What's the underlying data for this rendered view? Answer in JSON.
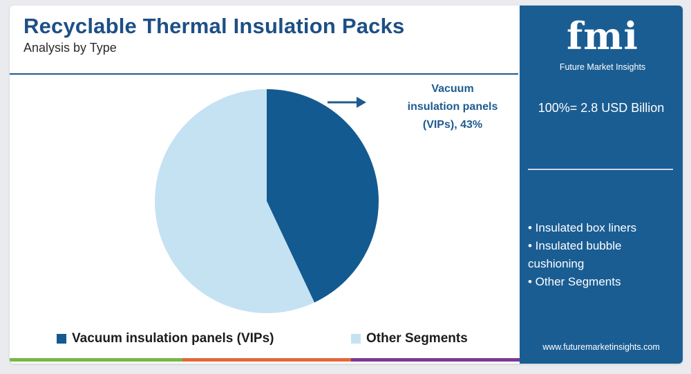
{
  "title": "Recyclable Thermal Insulation Packs",
  "subtitle": "Analysis by Type",
  "chart_data": {
    "type": "pie",
    "slices": [
      {
        "label": "Vacuum insulation panels (VIPs)",
        "value": 43,
        "color": "#135a90"
      },
      {
        "label": "Other Segments",
        "value": 57,
        "color": "#c5e2f3"
      }
    ],
    "annotation": "Vacuum insulation panels (VIPs), 43%",
    "legend_position": "bottom"
  },
  "callout": {
    "line1": "Vacuum",
    "line2": "insulation panels",
    "line3": "(VIPs), 43%"
  },
  "legend": [
    {
      "label": "Vacuum insulation panels (VIPs)",
      "color": "#135a90"
    },
    {
      "label": "Other Segments",
      "color": "#c5e2f3"
    }
  ],
  "panel": {
    "logo_text": "fmi",
    "logo_subtitle": "Future Market Insights",
    "total": "100%= 2.8 USD Billion",
    "bullets": [
      "• Insulated box liners",
      "• Insulated bubble cushioning",
      "• Other Segments"
    ],
    "website": "www.futuremarketinsights.com"
  },
  "colors": {
    "accent": "#1d4f86",
    "panel_bg": "#1a5d93",
    "bar_green": "#7ab648",
    "bar_orange": "#e4683a",
    "bar_purple": "#7b3a96"
  }
}
